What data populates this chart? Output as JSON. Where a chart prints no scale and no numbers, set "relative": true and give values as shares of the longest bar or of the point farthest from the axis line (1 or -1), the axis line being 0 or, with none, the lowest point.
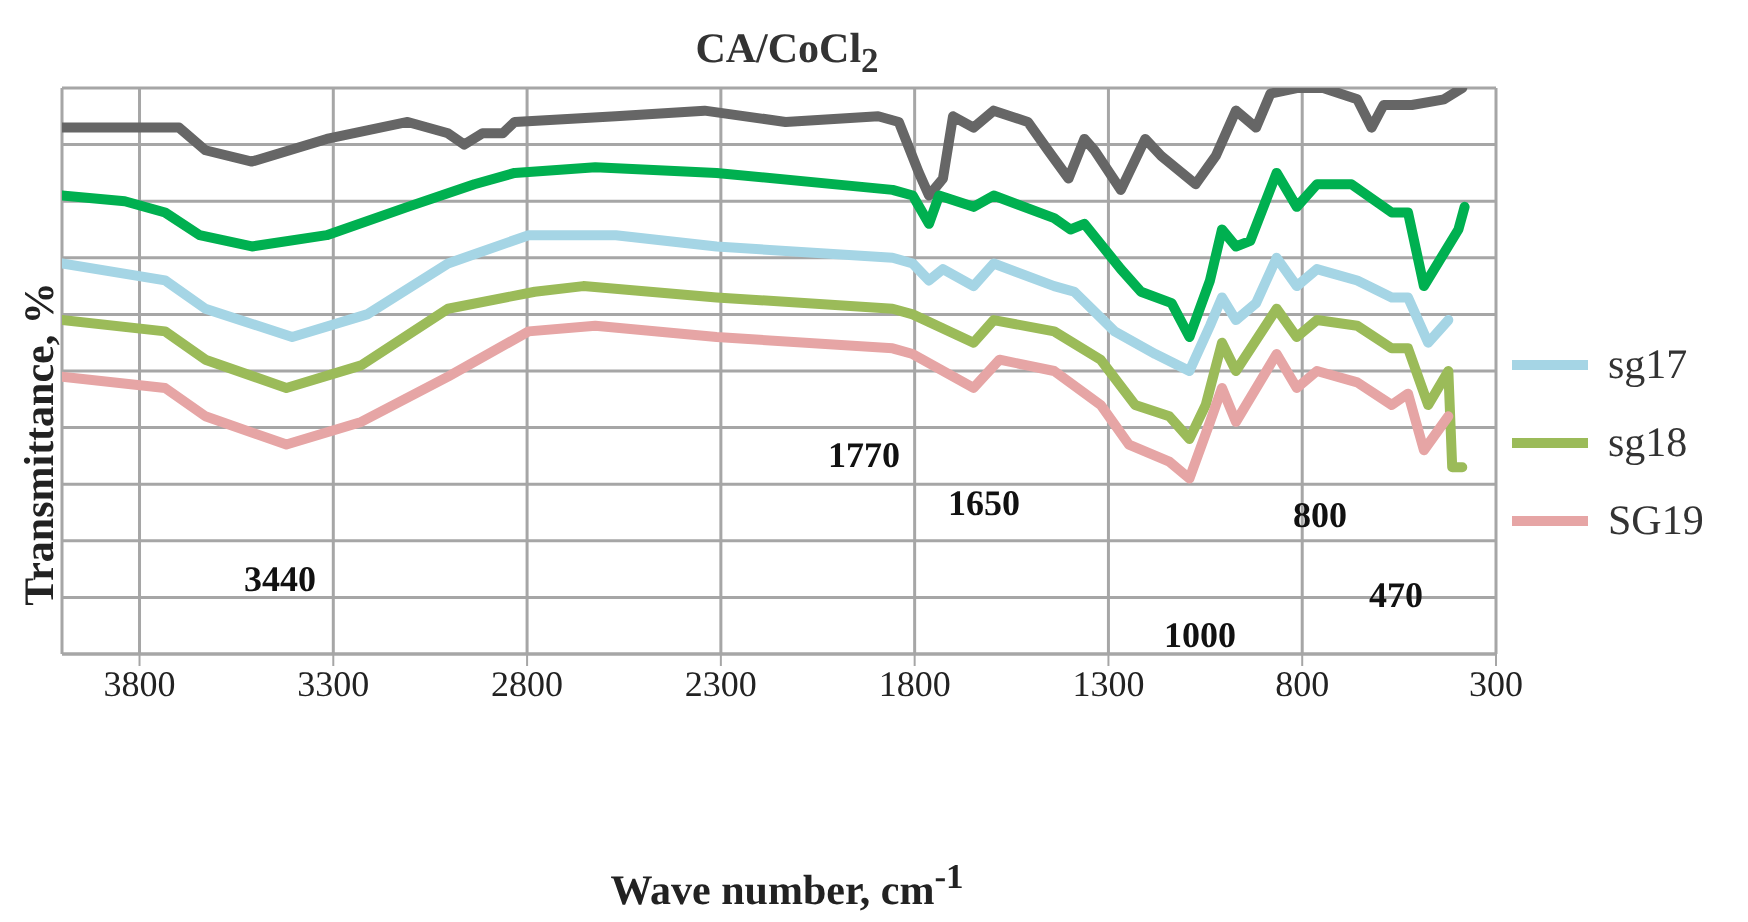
{
  "chart_data": {
    "type": "line",
    "title": "CA/CoCl$_{2}$",
    "xlabel": "Wave number, cm$^{-1}$",
    "ylabel": "Transmittance, %",
    "relative": true,
    "xlim": [
      4000,
      300
    ],
    "xticks": [
      3800,
      3300,
      2800,
      2300,
      1800,
      1300,
      800,
      300
    ],
    "grid": true,
    "legend": "right",
    "line_style": "solid",
    "marker": "none",
    "annotations": [
      "3440",
      "1770",
      "1650",
      "1000",
      "800",
      "470"
    ],
    "series": [
      {
        "color": "#666666",
        "x": [
          4000,
          3698,
          3630,
          3510,
          3317,
          3108,
          3004,
          2962,
          2915,
          2863,
          2832,
          2571,
          2342,
          2133,
          1894,
          1841,
          1789,
          1763,
          1727,
          1701,
          1648,
          1596,
          1508,
          1456,
          1403,
          1362,
          1336,
          1268,
          1205,
          1164,
          1075,
          1023,
          971,
          919,
          882,
          814,
          746,
          658,
          621,
          590,
          517,
          434,
          387
        ],
        "values": [
          0.93,
          0.93,
          0.89,
          0.87,
          0.91,
          0.94,
          0.92,
          0.9,
          0.92,
          0.92,
          0.94,
          0.95,
          0.96,
          0.94,
          0.95,
          0.94,
          0.85,
          0.81,
          0.84,
          0.95,
          0.93,
          0.96,
          0.94,
          0.89,
          0.84,
          0.91,
          0.89,
          0.82,
          0.91,
          0.88,
          0.83,
          0.88,
          0.96,
          0.93,
          0.99,
          1.0,
          1.0,
          0.98,
          0.93,
          0.97,
          0.97,
          0.98,
          1.0
        ]
      },
      {
        "color": "#00b050",
        "x": [
          4000,
          3838,
          3734,
          3645,
          3510,
          3317,
          3108,
          2936,
          2832,
          2624,
          2311,
          1857,
          1805,
          1763,
          1737,
          1648,
          1596,
          1440,
          1398,
          1362,
          1268,
          1216,
          1137,
          1091,
          1038,
          1007,
          971,
          934,
          866,
          814,
          762,
          673,
          569,
          527,
          486,
          397,
          381
        ],
        "values": [
          0.81,
          0.8,
          0.78,
          0.74,
          0.72,
          0.74,
          0.79,
          0.83,
          0.85,
          0.86,
          0.85,
          0.82,
          0.81,
          0.76,
          0.81,
          0.79,
          0.81,
          0.77,
          0.75,
          0.76,
          0.68,
          0.64,
          0.62,
          0.56,
          0.66,
          0.75,
          0.72,
          0.73,
          0.85,
          0.79,
          0.83,
          0.83,
          0.78,
          0.78,
          0.65,
          0.75,
          0.79
        ]
      },
      {
        "name": "sg17",
        "color": "#a5d5e5",
        "x": [
          4000,
          3734,
          3630,
          3406,
          3213,
          3004,
          2796,
          2571,
          2311,
          1857,
          1805,
          1763,
          1727,
          1648,
          1596,
          1440,
          1388,
          1284,
          1179,
          1091,
          1038,
          1007,
          971,
          919,
          866,
          814,
          762,
          658,
          569,
          527,
          475,
          423
        ],
        "values": [
          0.69,
          0.66,
          0.61,
          0.56,
          0.6,
          0.69,
          0.74,
          0.74,
          0.72,
          0.7,
          0.69,
          0.66,
          0.68,
          0.65,
          0.69,
          0.65,
          0.64,
          0.57,
          0.53,
          0.5,
          0.58,
          0.63,
          0.59,
          0.62,
          0.7,
          0.65,
          0.68,
          0.66,
          0.63,
          0.63,
          0.55,
          0.59
        ]
      },
      {
        "name": "sg18",
        "color": "#9bbb59",
        "x": [
          4000,
          3734,
          3630,
          3421,
          3228,
          3004,
          2780,
          2655,
          2311,
          1857,
          1805,
          1648,
          1596,
          1440,
          1320,
          1231,
          1143,
          1091,
          1049,
          1007,
          971,
          866,
          814,
          762,
          658,
          569,
          527,
          475,
          423,
          413,
          387
        ],
        "values": [
          0.59,
          0.57,
          0.52,
          0.47,
          0.51,
          0.61,
          0.64,
          0.65,
          0.63,
          0.61,
          0.6,
          0.55,
          0.59,
          0.57,
          0.52,
          0.44,
          0.42,
          0.38,
          0.44,
          0.55,
          0.5,
          0.61,
          0.56,
          0.59,
          0.58,
          0.54,
          0.54,
          0.44,
          0.5,
          0.33,
          0.33
        ]
      },
      {
        "name": "SG19",
        "color": "#e6a5a5",
        "x": [
          4000,
          3734,
          3630,
          3421,
          3228,
          3004,
          2796,
          2624,
          2311,
          1857,
          1805,
          1648,
          1581,
          1440,
          1320,
          1247,
          1143,
          1091,
          1038,
          1007,
          971,
          866,
          814,
          762,
          658,
          569,
          527,
          486,
          423
        ],
        "values": [
          0.49,
          0.47,
          0.42,
          0.37,
          0.41,
          0.49,
          0.57,
          0.58,
          0.56,
          0.54,
          0.53,
          0.47,
          0.52,
          0.5,
          0.44,
          0.37,
          0.34,
          0.31,
          0.41,
          0.47,
          0.41,
          0.53,
          0.47,
          0.5,
          0.48,
          0.44,
          0.46,
          0.36,
          0.42
        ]
      }
    ]
  }
}
